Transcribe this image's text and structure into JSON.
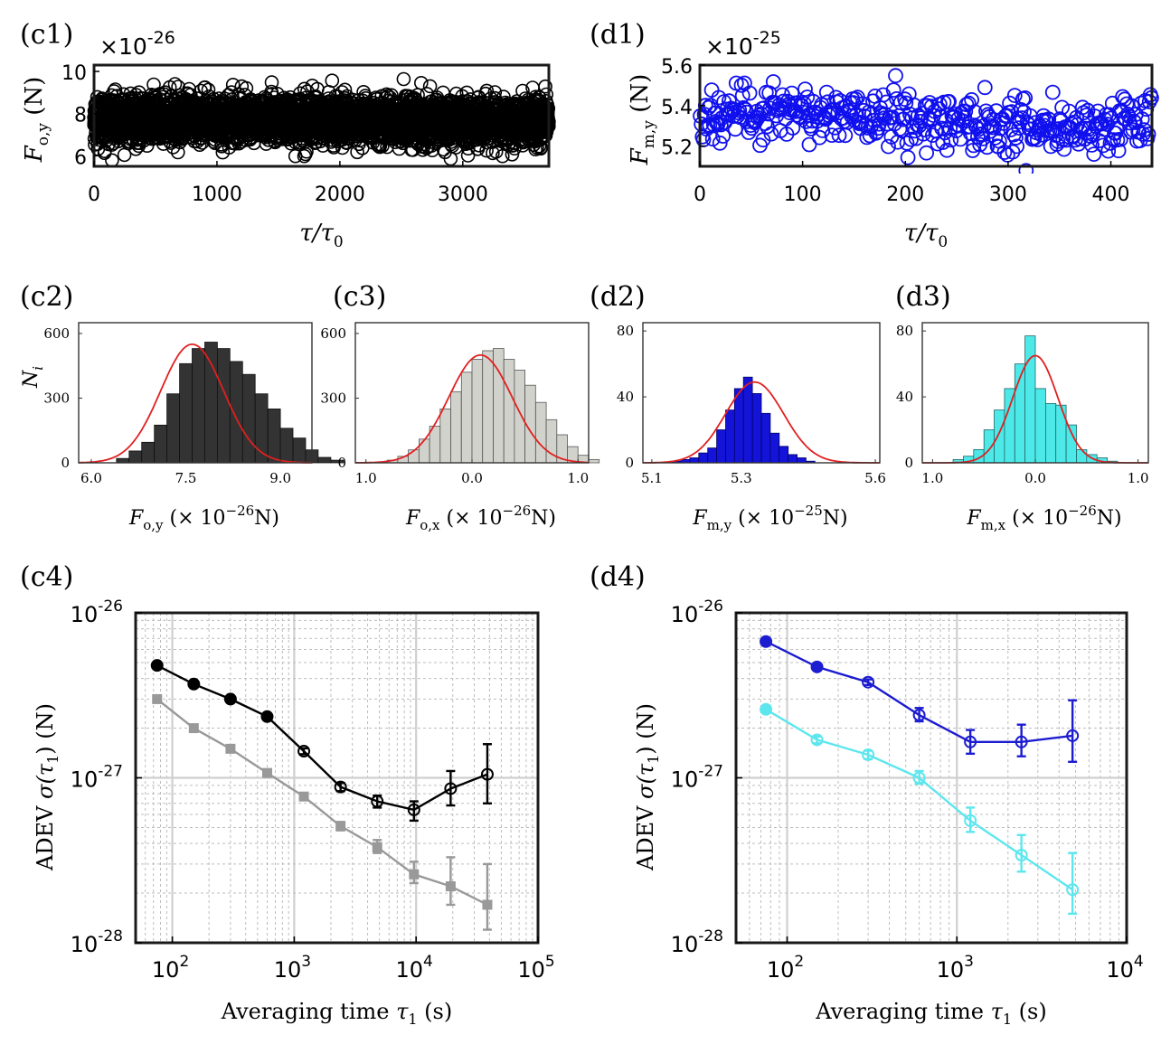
{
  "panels": {
    "c1": "(c1)",
    "d1": "(d1)",
    "c2": "(c2)",
    "c3": "(c3)",
    "d2": "(d2)",
    "d3": "(d3)",
    "c4": "(c4)",
    "d4": "(d4)"
  },
  "chart_data": [
    {
      "id": "c1",
      "type": "scatter",
      "multiplier_base": "×10",
      "multiplier_exp": "-26",
      "ylabel_main": "F",
      "ylabel_sub": "o,y",
      "ylabel_unit": " (N)",
      "xlabel_main": "τ/τ",
      "xlabel_sub": "0",
      "xlim": [
        0,
        3700
      ],
      "ylim": [
        5.5,
        10.3
      ],
      "xticks": [
        0,
        1000,
        2000,
        3000
      ],
      "yticks": [
        6,
        8,
        10
      ],
      "n_points": 3700,
      "mean": 7.7,
      "std": 0.55,
      "color": "#000000"
    },
    {
      "id": "d1",
      "type": "scatter",
      "multiplier_base": "×10",
      "multiplier_exp": "-25",
      "ylabel_main": "F",
      "ylabel_sub": "m,y",
      "ylabel_unit": " (N)",
      "xlabel_main": "τ/τ",
      "xlabel_sub": "0",
      "xlim": [
        0,
        440
      ],
      "ylim": [
        5.1,
        5.6
      ],
      "xticks": [
        0,
        100,
        200,
        300,
        400
      ],
      "yticks": [
        5.2,
        5.4,
        5.6
      ],
      "n_points": 440,
      "mean": 5.33,
      "std": 0.07,
      "color": "#1010ee"
    },
    {
      "id": "c2",
      "type": "bar",
      "xlabel_main": "F",
      "xlabel_sub": "o,y",
      "xlabel_rest": " (× 10",
      "xlabel_exp": "−26",
      "xlabel_unit": "N)",
      "ylabel_main": "N",
      "ylabel_sub": "i",
      "xlim": [
        5.8,
        9.5
      ],
      "ylim": [
        0,
        650
      ],
      "xticks": [
        "6.0",
        "7.5",
        "9.0"
      ],
      "xtick_values": [
        6.0,
        7.5,
        9.0
      ],
      "yticks": [
        "0",
        "300",
        "600"
      ],
      "ytick_values": [
        0,
        300,
        600
      ],
      "bin_start": 6.4,
      "bin_width": 0.2,
      "values": [
        20,
        55,
        95,
        175,
        320,
        460,
        530,
        560,
        530,
        470,
        410,
        320,
        250,
        160,
        115,
        60,
        25,
        12
      ],
      "fill": "#333333",
      "edge": "#111111",
      "fit": {
        "mean": 7.6,
        "sigma": 0.5,
        "amplitude": 550,
        "color": "#e02020"
      }
    },
    {
      "id": "c3",
      "type": "bar",
      "xlabel_main": "F",
      "xlabel_sub": "o,x",
      "xlabel_rest": " (× 10",
      "xlabel_exp": "−26",
      "xlabel_unit": "N)",
      "xlim": [
        -1.1,
        1.1
      ],
      "ylim": [
        0,
        650
      ],
      "xticks": [
        "1.0",
        "0.0",
        "1.0"
      ],
      "xtick_values": [
        -1.0,
        0.0,
        1.0
      ],
      "yticks": [
        "0",
        "300",
        "600"
      ],
      "ytick_values": [
        0,
        300,
        600
      ],
      "bin_start": -0.8,
      "bin_width": 0.1,
      "values": [
        12,
        30,
        60,
        110,
        170,
        250,
        330,
        420,
        480,
        520,
        530,
        480,
        430,
        360,
        280,
        200,
        130,
        75,
        35,
        15
      ],
      "fill": "#d2d2cc",
      "edge": "#555555",
      "fit": {
        "mean": 0.08,
        "sigma": 0.3,
        "amplitude": 500,
        "color": "#e02020"
      }
    },
    {
      "id": "d2",
      "type": "bar",
      "xlabel_main": "F",
      "xlabel_sub": "m,y",
      "xlabel_rest": " (× 10",
      "xlabel_exp": "−25",
      "xlabel_unit": "N)",
      "xlim": [
        5.08,
        5.61
      ],
      "ylim": [
        0,
        85
      ],
      "xticks": [
        "5.1",
        "5.3",
        "5.6"
      ],
      "xtick_values": [
        5.1,
        5.3,
        5.6
      ],
      "yticks": [
        "0",
        "40",
        "80"
      ],
      "ytick_values": [
        0,
        40,
        80
      ],
      "bin_start": 5.145,
      "bin_width": 0.02,
      "values": [
        1,
        2,
        3,
        6,
        9,
        20,
        32,
        45,
        52,
        42,
        30,
        18,
        10,
        5,
        3,
        1
      ],
      "fill": "#1414d8",
      "edge": "#000066",
      "fit": {
        "mean": 5.33,
        "sigma": 0.065,
        "amplitude": 49,
        "color": "#e02020"
      }
    },
    {
      "id": "d3",
      "type": "bar",
      "xlabel_main": "F",
      "xlabel_sub": "m,x",
      "xlabel_rest": " (× 10",
      "xlabel_exp": "−26",
      "xlabel_unit": "N)",
      "xlim": [
        -1.1,
        1.1
      ],
      "ylim": [
        0,
        85
      ],
      "xticks": [
        "1.0",
        "0.0",
        "1.0"
      ],
      "xtick_values": [
        -1.0,
        0.0,
        1.0
      ],
      "yticks": [
        "0",
        "40",
        "80"
      ],
      "ytick_values": [
        0,
        40,
        80
      ],
      "bin_start": -0.8,
      "bin_width": 0.1,
      "values": [
        2,
        4,
        8,
        20,
        32,
        45,
        60,
        77,
        45,
        36,
        35,
        23,
        8,
        5,
        3,
        1
      ],
      "fill": "#4de8e8",
      "edge": "#226666",
      "fit": {
        "mean": 0.0,
        "sigma": 0.22,
        "amplitude": 65,
        "color": "#e02020"
      }
    },
    {
      "id": "c4",
      "type": "line",
      "xscale": "log",
      "yscale": "log",
      "xlim": [
        50,
        100000
      ],
      "ylim": [
        1e-28,
        1e-26
      ],
      "xticks_base": "10",
      "xticks_exp": [
        "2",
        "3",
        "4",
        "5"
      ],
      "xtick_values": [
        100,
        1000,
        10000,
        100000
      ],
      "yticks_base": "10",
      "yticks_exp": [
        "-26",
        "-27",
        "-28"
      ],
      "ytick_values": [
        1e-26,
        1e-27,
        1e-28
      ],
      "xlabel_main": "Averaging time ",
      "xlabel_sym": "τ",
      "xlabel_sub": "1",
      "xlabel_unit": " (s)",
      "ylabel_main": "ADEV ",
      "ylabel_sym": "σ(τ",
      "ylabel_sub": "1",
      "ylabel_unit": ") (N)",
      "grid": true,
      "series": [
        {
          "color": "#000000",
          "marker": "circle-open",
          "x": [
            75,
            150,
            300,
            600,
            1200,
            2400,
            4800,
            9600,
            19200,
            38400
          ],
          "y": [
            4.8e-27,
            3.7e-27,
            3e-27,
            2.35e-27,
            1.45e-27,
            8.8e-28,
            7.2e-28,
            6.4e-28,
            8.6e-28,
            1.05e-27
          ],
          "err_low": [
            4.65e-27,
            3.6e-27,
            2.92e-27,
            2.26e-27,
            1.39e-27,
            8.3e-28,
            6.6e-28,
            5.5e-28,
            6.8e-28,
            7e-28
          ],
          "err_high": [
            4.95e-27,
            3.8e-27,
            3.08e-27,
            2.44e-27,
            1.51e-27,
            9.3e-28,
            7.8e-28,
            7.2e-28,
            1.1e-27,
            1.6e-27
          ]
        },
        {
          "color": "#999999",
          "marker": "square",
          "x": [
            75,
            150,
            300,
            600,
            1200,
            2400,
            4800,
            9600,
            19200,
            38400
          ],
          "y": [
            3e-27,
            2e-27,
            1.5e-27,
            1.07e-27,
            7.7e-28,
            5.1e-28,
            3.8e-28,
            2.6e-28,
            2.2e-28,
            1.7e-28
          ],
          "err_low": [
            2.95e-27,
            1.96e-27,
            1.46e-27,
            1.03e-27,
            7.4e-28,
            4.8e-28,
            3.5e-28,
            2.3e-28,
            1.7e-28,
            1.2e-28
          ],
          "err_high": [
            3.05e-27,
            2.04e-27,
            1.54e-27,
            1.11e-27,
            8e-28,
            5.4e-28,
            4.2e-28,
            3.1e-28,
            3.3e-28,
            3e-28
          ]
        }
      ]
    },
    {
      "id": "d4",
      "type": "line",
      "xscale": "log",
      "yscale": "log",
      "xlim": [
        50,
        10000
      ],
      "ylim": [
        1e-28,
        1e-26
      ],
      "xticks_base": "10",
      "xticks_exp": [
        "2",
        "3",
        "4"
      ],
      "xtick_values": [
        100,
        1000,
        10000
      ],
      "yticks_base": "10",
      "yticks_exp": [
        "-26",
        "-27",
        "-28"
      ],
      "ytick_values": [
        1e-26,
        1e-27,
        1e-28
      ],
      "xlabel_main": "Averaging time ",
      "xlabel_sym": "τ",
      "xlabel_sub": "1",
      "xlabel_unit": " (s)",
      "ylabel_main": "ADEV ",
      "ylabel_sym": "σ(τ",
      "ylabel_sub": "1",
      "ylabel_unit": ") (N)",
      "grid": true,
      "series": [
        {
          "color": "#1c1cd0",
          "marker": "circle-open",
          "x": [
            75,
            150,
            300,
            600,
            1200,
            2400,
            4800
          ],
          "y": [
            6.7e-27,
            4.7e-27,
            3.8e-27,
            2.4e-27,
            1.65e-27,
            1.65e-27,
            1.8e-27
          ],
          "err_low": [
            6.6e-27,
            4.6e-27,
            3.65e-27,
            2.2e-27,
            1.4e-27,
            1.35e-27,
            1.25e-27
          ],
          "err_high": [
            6.8e-27,
            4.8e-27,
            3.95e-27,
            2.65e-27,
            1.95e-27,
            2.1e-27,
            2.95e-27
          ]
        },
        {
          "color": "#5ee6ee",
          "marker": "circle-open",
          "x": [
            75,
            150,
            300,
            600,
            1200,
            2400,
            4800
          ],
          "y": [
            2.6e-27,
            1.7e-27,
            1.38e-27,
            1e-27,
            5.5e-28,
            3.4e-28,
            2.1e-28
          ],
          "err_low": [
            2.5e-27,
            1.62e-27,
            1.3e-27,
            9.2e-28,
            4.7e-28,
            2.7e-28,
            1.5e-28
          ],
          "err_high": [
            2.7e-27,
            1.78e-27,
            1.46e-27,
            1.1e-27,
            6.6e-28,
            4.5e-28,
            3.5e-28
          ]
        }
      ]
    }
  ]
}
